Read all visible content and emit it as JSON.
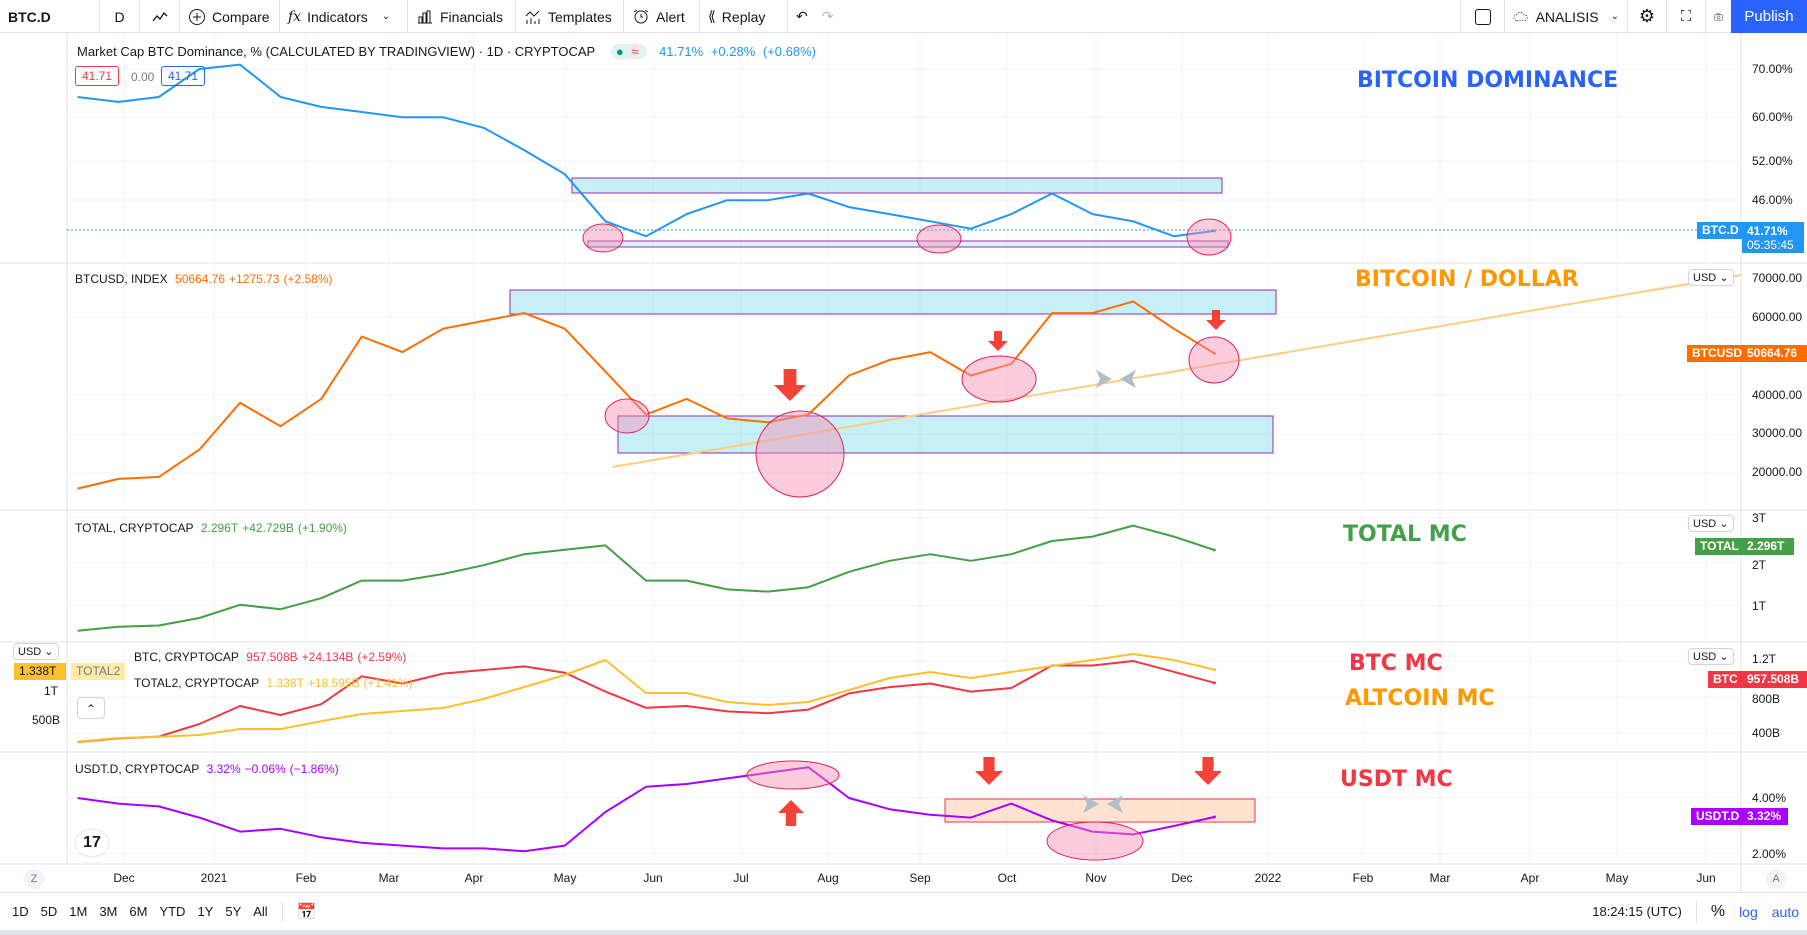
{
  "toolbar": {
    "symbol": "BTC.D",
    "interval": "D",
    "compare": "Compare",
    "indicators": "Indicators",
    "financials": "Financials",
    "templates": "Templates",
    "alert": "Alert",
    "replay": "Replay",
    "layout_name": "ANALISIS",
    "publish": "Publish"
  },
  "panes": {
    "dominance": {
      "title": "Market Cap BTC Dominance, % (CALCULATED BY TRADINGVIEW) · 1D · CRYPTOCAP",
      "value": "41.71%",
      "change": "+0.28%",
      "change_pct": "(+0.68%)",
      "box_sell": "41.71",
      "box_spread": "0.00",
      "box_buy": "41.71",
      "ticks": [
        "70.00%",
        "60.00%",
        "52.00%",
        "46.00%"
      ],
      "tag_name": "BTC.D",
      "tag_value": "41.71%",
      "tag_countdown": "05:35:45",
      "note": "BITCOIN DOMINANCE"
    },
    "btcusd": {
      "title": "BTCUSD, INDEX",
      "value": "50664.76",
      "change": "+1275.73",
      "change_pct": "(+2.58%)",
      "ticks": [
        "60000.00",
        "40000.00",
        "30000.00",
        "20000.00"
      ],
      "tick_top": "70000.00",
      "currency": "USD",
      "tag_name": "BTCUSD",
      "tag_value": "50664.76",
      "note": "BITCOIN / DOLLAR"
    },
    "total": {
      "title": "TOTAL, CRYPTOCAP",
      "value": "2.296T",
      "change": "+42.729B",
      "change_pct": "(+1.90%)",
      "ticks": [
        "3T",
        "2T",
        "1T"
      ],
      "currency": "USD",
      "tag_name": "TOTAL",
      "tag_value": "2.296T",
      "note": "TOTAL MC"
    },
    "btcmc": {
      "title": "BTC, CRYPTOCAP",
      "value": "957.508B",
      "change": "+24.134B",
      "change_pct": "(+2.59%)",
      "title2": "TOTAL2, CRYPTOCAP",
      "value2": "1.338T",
      "change2": "+18.595B",
      "change_pct2": "(+1.41%)",
      "ticks": [
        "1.2T",
        "800B",
        "400B"
      ],
      "left_ticks": [
        "1T",
        "500B"
      ],
      "currency": "USD",
      "tag_name": "BTC",
      "tag_value": "957.508B",
      "left_tag_value": "1.338T",
      "left_tag_name": "TOTAL2",
      "note": "BTC MC",
      "note2": "ALTCOIN MC"
    },
    "usdt": {
      "title": "USDT.D, CRYPTOCAP",
      "value": "3.32%",
      "change": "−0.06%",
      "change_pct": "(−1.86%)",
      "ticks": [
        "4.00%",
        "2.00%"
      ],
      "tag_name": "USDT.D",
      "tag_value": "3.32%",
      "note": "USDT MC"
    }
  },
  "time_axis": [
    "Dec",
    "2021",
    "Feb",
    "Mar",
    "Apr",
    "May",
    "Jun",
    "Jul",
    "Aug",
    "Sep",
    "Oct",
    "Nov",
    "Dec",
    "2022",
    "Feb",
    "Mar",
    "Apr",
    "May",
    "Jun"
  ],
  "bottom": {
    "ranges": [
      "1D",
      "5D",
      "1M",
      "3M",
      "6M",
      "YTD",
      "1Y",
      "5Y",
      "All"
    ],
    "clock": "18:24:15 (UTC)",
    "percent": "%",
    "log": "log",
    "auto": "auto",
    "z": "Z",
    "a": "A"
  },
  "colors": {
    "dominance": "#2196f3",
    "btcusd": "#ff6d00",
    "total": "#43a047",
    "btcmc": "#f23645",
    "total2": "#fbc02d",
    "usdt": "#aa00ff",
    "accent": "#2962ff"
  },
  "chart_data": {
    "type": "line",
    "x": [
      "2020-11-15",
      "2020-11-29",
      "2020-12-13",
      "2020-12-27",
      "2021-01-10",
      "2021-01-24",
      "2021-02-07",
      "2021-02-21",
      "2021-03-07",
      "2021-03-21",
      "2021-04-04",
      "2021-04-18",
      "2021-05-02",
      "2021-05-16",
      "2021-05-30",
      "2021-06-13",
      "2021-06-27",
      "2021-07-11",
      "2021-07-25",
      "2021-08-08",
      "2021-08-22",
      "2021-09-05",
      "2021-09-19",
      "2021-10-03",
      "2021-10-17",
      "2021-10-31",
      "2021-11-14",
      "2021-11-28",
      "2021-12-12"
    ],
    "series": [
      {
        "name": "BTC.D (%)",
        "values": [
          64,
          63,
          64,
          70,
          71,
          64,
          62,
          61,
          60,
          60,
          58,
          54,
          50,
          43,
          41,
          44,
          46,
          46,
          47,
          45,
          44,
          43,
          42,
          44,
          47,
          44,
          43,
          41,
          41.71
        ]
      },
      {
        "name": "BTCUSD",
        "values": [
          16000,
          18500,
          19000,
          26000,
          38000,
          32000,
          39000,
          55000,
          51000,
          57000,
          59000,
          61000,
          57000,
          46000,
          35000,
          39000,
          34000,
          33000,
          35000,
          45000,
          49000,
          51000,
          45000,
          48000,
          61000,
          61000,
          64000,
          57000,
          50664.76
        ]
      },
      {
        "name": "TOTAL (T)",
        "values": [
          0.46,
          0.55,
          0.58,
          0.75,
          1.05,
          0.95,
          1.2,
          1.6,
          1.6,
          1.75,
          1.95,
          2.2,
          2.3,
          2.4,
          1.6,
          1.6,
          1.4,
          1.35,
          1.45,
          1.8,
          2.05,
          2.2,
          2.05,
          2.2,
          2.5,
          2.6,
          2.85,
          2.6,
          2.296
        ]
      },
      {
        "name": "BTC MC (B)",
        "values": [
          300,
          340,
          360,
          500,
          700,
          600,
          720,
          1030,
          950,
          1060,
          1100,
          1140,
          1070,
          860,
          680,
          700,
          640,
          620,
          660,
          840,
          910,
          950,
          860,
          900,
          1150,
          1150,
          1200,
          1080,
          957.508
        ]
      },
      {
        "name": "TOTAL2 (T)",
        "values": [
          0.14,
          0.2,
          0.22,
          0.25,
          0.35,
          0.35,
          0.48,
          0.6,
          0.65,
          0.7,
          0.85,
          1.05,
          1.25,
          1.5,
          0.95,
          0.95,
          0.8,
          0.75,
          0.8,
          1.0,
          1.2,
          1.3,
          1.2,
          1.3,
          1.4,
          1.5,
          1.6,
          1.5,
          1.338
        ]
      },
      {
        "name": "USDT.D (%)",
        "values": [
          4.0,
          3.8,
          3.7,
          3.3,
          2.8,
          2.9,
          2.6,
          2.4,
          2.3,
          2.2,
          2.2,
          2.1,
          2.3,
          3.5,
          4.4,
          4.5,
          4.7,
          4.9,
          5.1,
          4.0,
          3.6,
          3.4,
          3.3,
          3.8,
          3.2,
          2.8,
          2.7,
          3.0,
          3.32
        ]
      }
    ]
  }
}
